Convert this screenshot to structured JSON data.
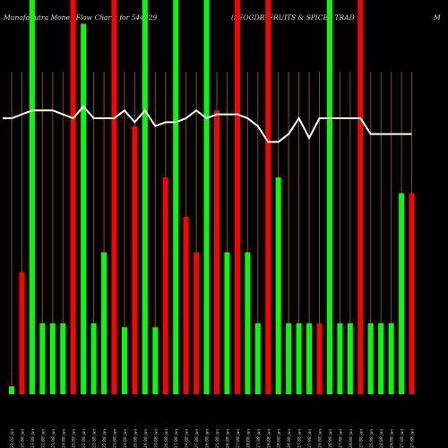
{
  "header": {
    "left": "MunafaSutra  Money Flow  Charts for 544329",
    "middle": "(LEOGDRYFRUITS & SPICES TRAD",
    "right": "M"
  },
  "colors": {
    "up": "#00ff00",
    "down": "#ff0000",
    "line": "#ffffff",
    "grid": "#8a4b00",
    "background": "#000000"
  },
  "chart_data": {
    "type": "bar",
    "x": [
      "22.02 Jan",
      "20.88 Jan",
      "23.88 Jan",
      "22.88 Jan",
      "23.88 Jan",
      "24.88 Jan",
      "25.88 Jan",
      "22.88 Jan",
      "21.88 Jan",
      "22.88 Jan",
      "23.88 Jan",
      "24.88 Jan",
      "25.88 Jan",
      "26.88 Jan",
      "29.88 Jan",
      "26.88 Jan",
      "27.88 Jan",
      "24.88 Jan",
      "27.88 Jan",
      "26.88 Jan",
      "25.88 Jan",
      "26.88 Jan",
      "27.88 Jan",
      "28.88 Jan",
      "27.88 Jan",
      "26.88 Jan",
      "28.88 Jan",
      "26.88 Jan",
      "27.88 Jan",
      "27.88 Jan",
      "29.88 Jan",
      "28.88 Jan",
      "27.88 Jan",
      "26.88 Jan",
      "27.88 Jan",
      "25.88 Jan",
      "24.88 Jan",
      "26.88 Jan",
      "27.88 Jan",
      "27.88 Jan"
    ],
    "bar_colors": [
      "green",
      "red",
      "green",
      "green",
      "green",
      "green",
      "red",
      "green",
      "green",
      "green",
      "red",
      "green",
      "red",
      "green",
      "green",
      "red",
      "green",
      "red",
      "red",
      "green",
      "red",
      "green",
      "red",
      "green",
      "green",
      "red",
      "green",
      "green",
      "green",
      "green",
      "red",
      "green",
      "green",
      "green",
      "red",
      "green",
      "green",
      "green",
      "green",
      "red"
    ],
    "bar_values": [
      2,
      31,
      100,
      18,
      18,
      18,
      100,
      94,
      18,
      36,
      100,
      17,
      68,
      100,
      17,
      55,
      100,
      45,
      36,
      100,
      72,
      36,
      100,
      36,
      18,
      100,
      55,
      18,
      18,
      18,
      18,
      100,
      18,
      18,
      100,
      18,
      18,
      18,
      51,
      51
    ],
    "line_values": [
      70,
      71,
      72,
      72,
      72,
      71,
      70,
      73,
      70,
      70,
      70,
      72,
      69,
      72,
      68,
      69,
      69,
      70,
      72,
      70,
      71,
      71,
      71,
      70,
      68,
      64,
      64,
      66,
      70,
      65,
      70,
      70,
      70,
      70,
      70,
      66,
      66,
      66,
      66,
      66
    ],
    "line_start": [
      0,
      70
    ],
    "ylim": [
      0,
      100
    ],
    "grid": "vertical"
  }
}
